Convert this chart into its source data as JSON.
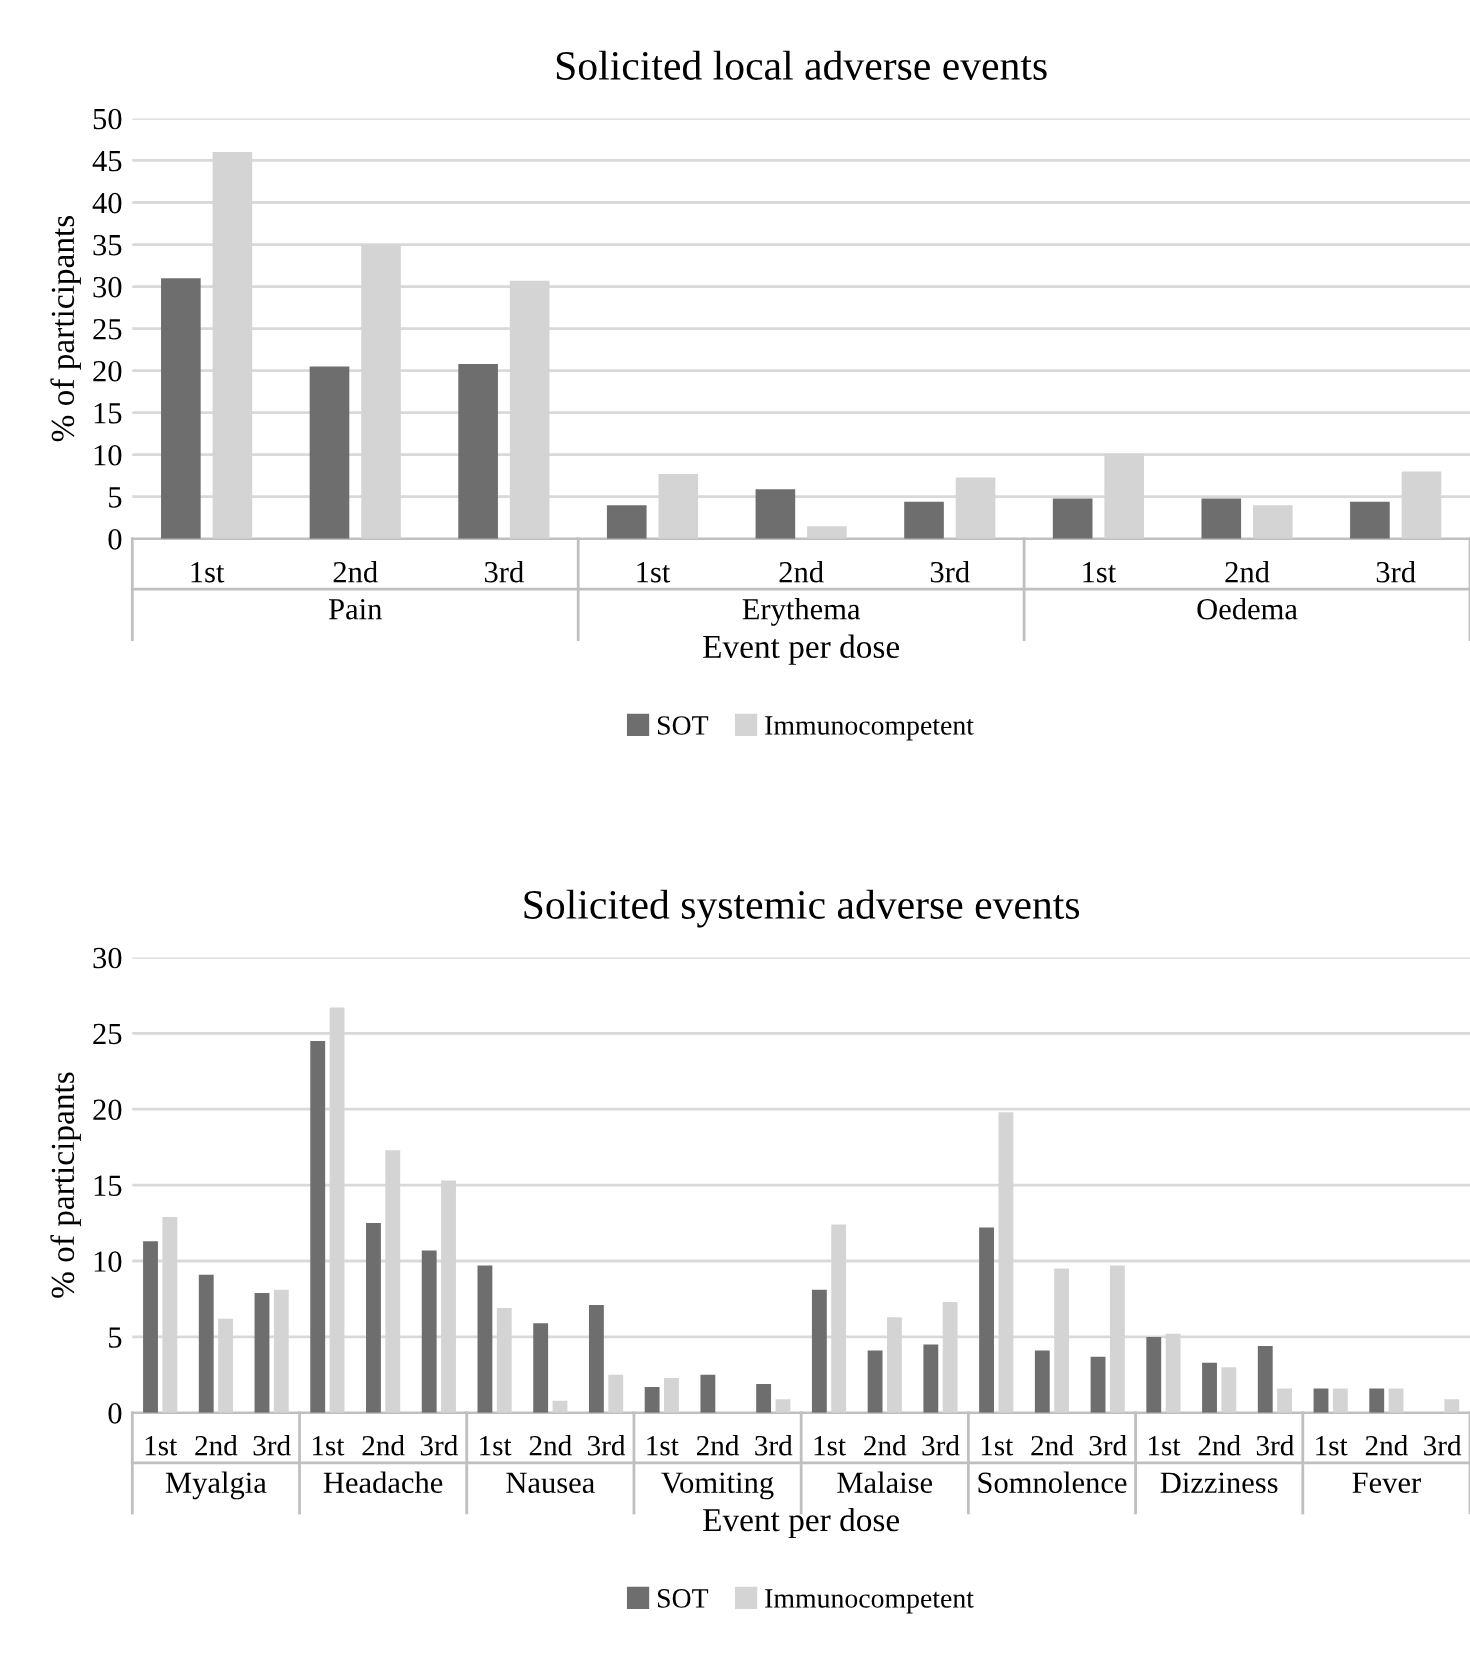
{
  "chart_data": [
    {
      "type": "bar",
      "title": "Solicited local adverse events",
      "xlabel": "Event per dose",
      "ylabel": "% of participants",
      "categories": [
        "1st",
        "2nd",
        "3rd",
        "1st",
        "2nd",
        "3rd",
        "1st",
        "2nd",
        "3rd"
      ],
      "annotations": [
        "Pain",
        "Erythema",
        "Oedema"
      ],
      "series": [
        {
          "name": "SOT",
          "color": "#6e6e6e",
          "values": [
            31,
            20.5,
            20.8,
            4,
            5.9,
            4.4,
            4.8,
            4.8,
            4.4
          ]
        },
        {
          "name": "Immunocompetent",
          "color": "#d4d4d4",
          "values": [
            46,
            35,
            30.7,
            7.7,
            1.5,
            7.3,
            10.1,
            4,
            8
          ]
        }
      ],
      "ylim": [
        0,
        50
      ],
      "yticks": [
        0,
        5,
        10,
        15,
        20,
        25,
        30,
        35,
        40,
        45,
        50
      ],
      "grid": "y",
      "legend": "bottom"
    },
    {
      "type": "bar",
      "title": "Solicited systemic adverse events",
      "xlabel": "Event per dose",
      "ylabel": "% of participants",
      "categories": [
        "1st",
        "2nd",
        "3rd",
        "1st",
        "2nd",
        "3rd",
        "1st",
        "2nd",
        "3rd",
        "1st",
        "2nd",
        "3rd",
        "1st",
        "2nd",
        "3rd",
        "1st",
        "2nd",
        "3rd",
        "1st",
        "2nd",
        "3rd",
        "1st",
        "2nd",
        "3rd"
      ],
      "annotations": [
        "Myalgia",
        "Headache",
        "Nausea",
        "Vomiting",
        "Malaise",
        "Somnolence",
        "Dizziness",
        "Fever"
      ],
      "series": [
        {
          "name": "SOT",
          "color": "#6e6e6e",
          "values": [
            11.3,
            9.1,
            7.9,
            24.5,
            12.5,
            10.7,
            9.7,
            5.9,
            7.1,
            1.7,
            2.5,
            1.9,
            8.1,
            4.1,
            4.5,
            12.2,
            4.1,
            3.7,
            5.0,
            3.3,
            4.4,
            1.6,
            1.6,
            0
          ]
        },
        {
          "name": "Immunocompetent",
          "color": "#d4d4d4",
          "values": [
            12.9,
            6.2,
            8.1,
            26.7,
            17.3,
            15.3,
            6.9,
            0.8,
            2.5,
            2.3,
            0,
            0.9,
            12.4,
            6.3,
            7.3,
            19.8,
            9.5,
            9.7,
            5.2,
            3.0,
            1.6,
            1.6,
            1.6,
            0.9
          ]
        }
      ],
      "ylim": [
        0,
        30
      ],
      "yticks": [
        0,
        5,
        10,
        15,
        20,
        25,
        30
      ],
      "grid": "y",
      "legend": "bottom"
    }
  ]
}
